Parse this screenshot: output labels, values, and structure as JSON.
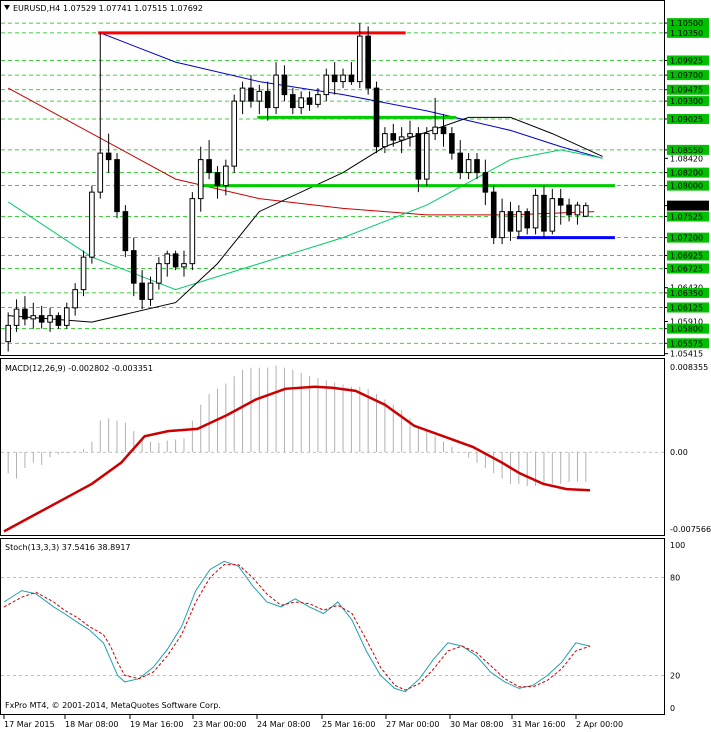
{
  "header": {
    "symbol": "EURUSD,H4",
    "ohlc": "1.07529 1.07741 1.07515 1.07692"
  },
  "copyright": "FxPro MT4, © 2001-2014, MetaQuotes Software Corp.",
  "colors": {
    "background": "#ffffff",
    "candle": "#000000",
    "grid": "#00c000",
    "ma_red": "#cc0000",
    "ma_blue": "#0000cc",
    "ma_green": "#00cc66",
    "ma_black": "#000000",
    "level_red": "#ff0000",
    "level_green": "#00cc00",
    "level_blue": "#0000ff",
    "macd_hist": "#b0b0b0",
    "macd_signal": "#cc0000",
    "stoch_main": "#20a0b0",
    "stoch_signal": "#cc0000"
  },
  "chart_data": [
    {
      "type": "candlestick",
      "title": "EURUSD,H4",
      "ylim": [
        1.0541,
        1.1064
      ],
      "time_labels": [
        "17 Mar 2015",
        "18 Mar 08:00",
        "19 Mar 16:00",
        "23 Mar 00:00",
        "24 Mar 08:00",
        "25 Mar 16:00",
        "27 Mar 00:00",
        "30 Mar 08:00",
        "31 Mar 16:00",
        "2 Apr 00:00"
      ],
      "price_labels": [
        "1.10500",
        "1.10350",
        "1.09925",
        "1.09700",
        "1.09475",
        "1.09300",
        "1.09025",
        "1.08550",
        "1.08420",
        "1.08200",
        "1.08000",
        "1.07692",
        "1.07525",
        "1.07200",
        "1.06925",
        "1.06725",
        "1.06430",
        "1.06350",
        "1.06125",
        "1.05910",
        "1.05800",
        "1.05575",
        "1.05415"
      ],
      "highlighted_labels": [
        "1.10500",
        "1.10350",
        "1.09925",
        "1.09700",
        "1.09475",
        "1.09300",
        "1.09025",
        "1.08550",
        "1.08200",
        "1.08000",
        "1.07525",
        "1.07200",
        "1.06925",
        "1.06725",
        "1.06350",
        "1.06125",
        "1.05800",
        "1.05575"
      ],
      "current_price_label": "1.07692",
      "candles": [
        [
          1.056,
          1.0605,
          1.0545,
          1.0585
        ],
        [
          1.0585,
          1.0625,
          1.0575,
          1.061
        ],
        [
          1.061,
          1.063,
          1.0585,
          1.0595
        ],
        [
          1.0595,
          1.062,
          1.058,
          1.06
        ],
        [
          1.06,
          1.0615,
          1.058,
          1.059
        ],
        [
          1.059,
          1.0612,
          1.0575,
          1.06
        ],
        [
          1.06,
          1.0605,
          1.058,
          1.0585
        ],
        [
          1.0585,
          1.062,
          1.058,
          1.0612
        ],
        [
          1.0612,
          1.065,
          1.06,
          1.064
        ],
        [
          1.064,
          1.07,
          1.063,
          1.069
        ],
        [
          1.069,
          1.08,
          1.068,
          1.079
        ],
        [
          1.079,
          1.1035,
          1.078,
          1.085
        ],
        [
          1.085,
          1.088,
          1.082,
          1.084
        ],
        [
          1.084,
          1.085,
          1.075,
          1.076
        ],
        [
          1.076,
          1.077,
          1.069,
          1.07
        ],
        [
          1.07,
          1.072,
          1.063,
          1.065
        ],
        [
          1.065,
          1.067,
          1.061,
          1.0625
        ],
        [
          1.0625,
          1.066,
          1.0615,
          1.065
        ],
        [
          1.065,
          1.069,
          1.064,
          1.068
        ],
        [
          1.068,
          1.07,
          1.066,
          1.0695
        ],
        [
          1.0695,
          1.07,
          1.067,
          1.0675
        ],
        [
          1.0675,
          1.07,
          1.066,
          1.068
        ],
        [
          1.068,
          1.079,
          1.067,
          1.078
        ],
        [
          1.078,
          1.086,
          1.076,
          1.084
        ],
        [
          1.084,
          1.087,
          1.081,
          1.082
        ],
        [
          1.082,
          1.083,
          1.078,
          1.08
        ],
        [
          1.08,
          1.084,
          1.0785,
          1.083
        ],
        [
          1.083,
          1.094,
          1.082,
          1.093
        ],
        [
          1.093,
          1.096,
          1.091,
          1.095
        ],
        [
          1.095,
          1.097,
          1.092,
          1.093
        ],
        [
          1.093,
          1.0955,
          1.091,
          1.0945
        ],
        [
          1.0945,
          1.096,
          1.09,
          1.092
        ],
        [
          1.092,
          1.099,
          1.091,
          1.097
        ],
        [
          1.097,
          1.0985,
          1.093,
          1.094
        ],
        [
          1.094,
          1.095,
          1.091,
          1.092
        ],
        [
          1.092,
          1.0945,
          1.091,
          1.0935
        ],
        [
          1.0935,
          1.0945,
          1.0915,
          1.0925
        ],
        [
          1.0925,
          1.095,
          1.092,
          1.094
        ],
        [
          1.094,
          1.098,
          1.093,
          1.097
        ],
        [
          1.097,
          1.099,
          1.094,
          1.096
        ],
        [
          1.096,
          1.098,
          1.095,
          1.097
        ],
        [
          1.097,
          1.099,
          1.0955,
          1.096
        ],
        [
          1.096,
          1.105,
          1.095,
          1.103
        ],
        [
          1.103,
          1.1045,
          1.094,
          1.095
        ],
        [
          1.095,
          1.096,
          1.085,
          1.086
        ],
        [
          1.086,
          1.089,
          1.085,
          1.088
        ],
        [
          1.088,
          1.0895,
          1.086,
          1.087
        ],
        [
          1.087,
          1.089,
          1.085,
          1.0875
        ],
        [
          1.0875,
          1.09,
          1.086,
          1.088
        ],
        [
          1.088,
          1.089,
          1.079,
          1.081
        ],
        [
          1.081,
          1.089,
          1.08,
          1.088
        ],
        [
          1.088,
          1.0935,
          1.087,
          1.089
        ],
        [
          1.089,
          1.091,
          1.086,
          1.088
        ],
        [
          1.088,
          1.089,
          1.084,
          1.085
        ],
        [
          1.085,
          1.087,
          1.081,
          1.082
        ],
        [
          1.082,
          1.085,
          1.081,
          1.084
        ],
        [
          1.084,
          1.085,
          1.081,
          1.082
        ],
        [
          1.082,
          1.084,
          1.077,
          1.079
        ],
        [
          1.079,
          1.08,
          1.071,
          1.072
        ],
        [
          1.072,
          1.078,
          1.071,
          1.076
        ],
        [
          1.076,
          1.0775,
          1.0715,
          1.073
        ],
        [
          1.073,
          1.077,
          1.072,
          1.076
        ],
        [
          1.076,
          1.0765,
          1.0725,
          1.0735
        ],
        [
          1.0735,
          1.0795,
          1.0725,
          1.0785
        ],
        [
          1.0785,
          1.08,
          1.072,
          1.073
        ],
        [
          1.073,
          1.0795,
          1.0725,
          1.078
        ],
        [
          1.078,
          1.0795,
          1.074,
          1.077
        ],
        [
          1.077,
          1.078,
          1.0745,
          1.0755
        ],
        [
          1.0755,
          1.0775,
          1.074,
          1.077
        ],
        [
          1.07529,
          1.07741,
          1.07515,
          1.07692
        ]
      ],
      "horizontal_levels": [
        {
          "price": 1.1035,
          "color": "red",
          "from": 11,
          "to": 47
        },
        {
          "price": 1.0905,
          "color": "green",
          "from": 30,
          "to": 53
        },
        {
          "price": 1.08,
          "color": "green",
          "from": 23,
          "to": 72
        },
        {
          "price": 1.072,
          "color": "blue",
          "from": 61,
          "to": 72
        }
      ],
      "moving_averages": [
        {
          "color": "red",
          "points": [
            [
              0,
              1.095
            ],
            [
              10,
              1.088
            ],
            [
              20,
              1.081
            ],
            [
              30,
              1.078
            ],
            [
              40,
              1.0765
            ],
            [
              45,
              1.076
            ],
            [
              50,
              1.0755
            ],
            [
              60,
              1.0755
            ],
            [
              70,
              1.076
            ]
          ]
        },
        {
          "color": "blue",
          "points": [
            [
              11,
              1.1035
            ],
            [
              20,
              1.099
            ],
            [
              30,
              1.096
            ],
            [
              40,
              1.094
            ],
            [
              50,
              1.0915
            ],
            [
              60,
              1.0885
            ],
            [
              66,
              1.086
            ],
            [
              71,
              1.0842
            ]
          ]
        },
        {
          "color": "green",
          "points": [
            [
              0,
              1.0775
            ],
            [
              10,
              1.069
            ],
            [
              20,
              1.064
            ],
            [
              30,
              1.068
            ],
            [
              40,
              1.072
            ],
            [
              50,
              1.077
            ],
            [
              60,
              1.084
            ],
            [
              66,
              1.0855
            ],
            [
              71,
              1.0842
            ]
          ]
        },
        {
          "color": "black",
          "points": [
            [
              0,
              1.06
            ],
            [
              10,
              1.059
            ],
            [
              20,
              1.062
            ],
            [
              25,
              1.068
            ],
            [
              30,
              1.076
            ],
            [
              40,
              1.082
            ],
            [
              45,
              1.086
            ],
            [
              55,
              1.0905
            ],
            [
              60,
              1.0905
            ],
            [
              65,
              1.088
            ],
            [
              71,
              1.0845
            ]
          ]
        }
      ]
    },
    {
      "type": "macd",
      "label": "MACD(12,26,9) -0.002802 -0.003351",
      "ylim": [
        -0.00756,
        0.00835
      ],
      "tick_labels": [
        "0.008355",
        "0.00",
        "-0.007566"
      ],
      "histogram": [
        -0.002,
        -0.0025,
        -0.0015,
        -0.001,
        -0.0012,
        -0.0005,
        -0.0002,
        -0.0001,
        0.0001,
        0.0003,
        0.001,
        0.003,
        0.0032,
        0.003,
        0.0028,
        0.002,
        0.0012,
        0.001,
        0.0009,
        0.0011,
        0.0012,
        0.0013,
        0.003,
        0.0045,
        0.0055,
        0.006,
        0.0065,
        0.0072,
        0.0078,
        0.008,
        0.008,
        0.008,
        0.0082,
        0.008,
        0.0078,
        0.0075,
        0.0072,
        0.007,
        0.0068,
        0.0066,
        0.0064,
        0.0062,
        0.0062,
        0.006,
        0.0055,
        0.005,
        0.0045,
        0.004,
        0.0032,
        0.0025,
        0.002,
        0.0015,
        0.001,
        0.0005,
        0.0,
        -0.0005,
        -0.001,
        -0.0015,
        -0.002,
        -0.0025,
        -0.003,
        -0.003,
        -0.0032,
        -0.0032,
        -0.003,
        -0.003,
        -0.003,
        -0.0028,
        -0.0028,
        -0.0028
      ],
      "signal": [
        [
          0,
          -0.0075
        ],
        [
          5,
          -0.006
        ],
        [
          10,
          -0.0045
        ],
        [
          15,
          -0.003
        ],
        [
          20,
          -0.001
        ],
        [
          24,
          0.0015
        ],
        [
          28,
          0.002
        ],
        [
          33,
          0.0022
        ],
        [
          38,
          0.0035
        ],
        [
          43,
          0.005
        ],
        [
          48,
          0.006
        ],
        [
          53,
          0.0062
        ],
        [
          56,
          0.0061
        ],
        [
          60,
          0.0058
        ],
        [
          65,
          0.0045
        ],
        [
          70,
          0.0025
        ],
        [
          75,
          0.0015
        ],
        [
          80,
          0.0005
        ],
        [
          85,
          -0.001
        ],
        [
          88,
          -0.002
        ],
        [
          92,
          -0.003
        ],
        [
          96,
          -0.0035
        ],
        [
          100,
          -0.0036
        ]
      ]
    },
    {
      "type": "stochastic",
      "label": "Stoch(13,3,3) 37.5416 38.8917",
      "ylim": [
        0,
        100
      ],
      "tick_labels": [
        "100",
        "80",
        "20",
        "0"
      ],
      "main": [
        [
          0,
          65
        ],
        [
          5,
          72
        ],
        [
          9,
          70
        ],
        [
          14,
          62
        ],
        [
          17,
          58
        ],
        [
          21,
          52
        ],
        [
          24,
          48
        ],
        [
          28,
          40
        ],
        [
          30,
          30
        ],
        [
          32,
          20
        ],
        [
          34,
          16
        ],
        [
          38,
          18
        ],
        [
          42,
          25
        ],
        [
          46,
          36
        ],
        [
          50,
          50
        ],
        [
          54,
          72
        ],
        [
          58,
          85
        ],
        [
          62,
          90
        ],
        [
          66,
          87
        ],
        [
          70,
          75
        ],
        [
          74,
          65
        ],
        [
          78,
          62
        ],
        [
          82,
          67
        ],
        [
          86,
          62
        ],
        [
          90,
          58
        ],
        [
          94,
          65
        ],
        [
          98,
          54
        ],
        [
          102,
          35
        ],
        [
          106,
          20
        ],
        [
          110,
          12
        ],
        [
          113,
          10
        ],
        [
          117,
          18
        ],
        [
          121,
          30
        ],
        [
          125,
          40
        ],
        [
          129,
          38
        ],
        [
          133,
          32
        ],
        [
          137,
          22
        ],
        [
          141,
          16
        ],
        [
          145,
          12
        ],
        [
          149,
          14
        ],
        [
          153,
          20
        ],
        [
          157,
          28
        ],
        [
          161,
          40
        ],
        [
          165,
          38
        ]
      ],
      "signal": [
        [
          0,
          62
        ],
        [
          5,
          68
        ],
        [
          9,
          71
        ],
        [
          14,
          65
        ],
        [
          17,
          60
        ],
        [
          21,
          55
        ],
        [
          24,
          50
        ],
        [
          28,
          45
        ],
        [
          30,
          38
        ],
        [
          32,
          28
        ],
        [
          34,
          20
        ],
        [
          38,
          18
        ],
        [
          42,
          22
        ],
        [
          46,
          32
        ],
        [
          50,
          45
        ],
        [
          54,
          65
        ],
        [
          58,
          80
        ],
        [
          62,
          88
        ],
        [
          66,
          88
        ],
        [
          70,
          80
        ],
        [
          74,
          70
        ],
        [
          78,
          63
        ],
        [
          82,
          65
        ],
        [
          86,
          64
        ],
        [
          90,
          60
        ],
        [
          94,
          63
        ],
        [
          98,
          58
        ],
        [
          102,
          42
        ],
        [
          106,
          25
        ],
        [
          110,
          14
        ],
        [
          113,
          11
        ],
        [
          117,
          15
        ],
        [
          121,
          24
        ],
        [
          125,
          35
        ],
        [
          129,
          38
        ],
        [
          133,
          34
        ],
        [
          137,
          26
        ],
        [
          141,
          18
        ],
        [
          145,
          13
        ],
        [
          149,
          13
        ],
        [
          153,
          17
        ],
        [
          157,
          24
        ],
        [
          161,
          35
        ],
        [
          165,
          38
        ]
      ]
    }
  ]
}
